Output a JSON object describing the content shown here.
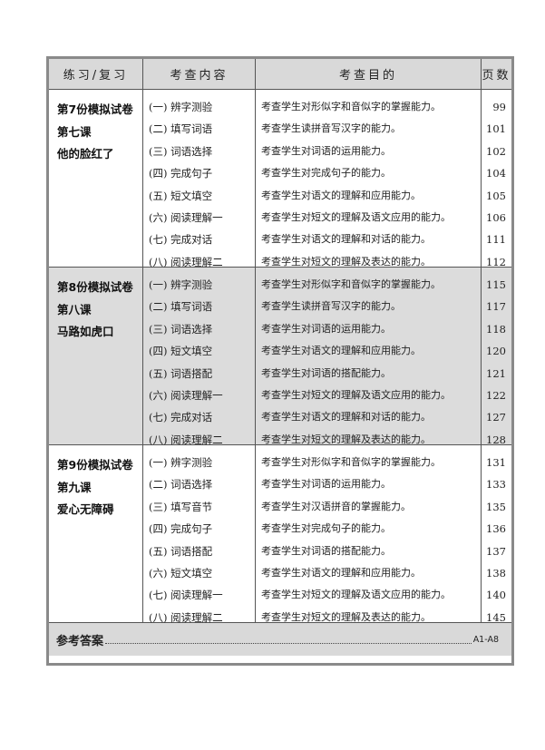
{
  "header": {
    "col1": "练习/复习",
    "col2": "考查内容",
    "col3": "考查目的",
    "col4": "页数"
  },
  "sections": [
    {
      "title": [
        "第7份模拟试卷",
        "第七课",
        "他的脸红了"
      ],
      "items": [
        {
          "content": "(一) 辨字测验",
          "purpose": "考查学生对形似字和音似字的掌握能力。",
          "page": "99"
        },
        {
          "content": "(二) 填写词语",
          "purpose": "考查学生读拼音写汉字的能力。",
          "page": "101"
        },
        {
          "content": "(三) 词语选择",
          "purpose": "考查学生对词语的运用能力。",
          "page": "102"
        },
        {
          "content": "(四) 完成句子",
          "purpose": "考查学生对完成句子的能力。",
          "page": "104"
        },
        {
          "content": "(五) 短文填空",
          "purpose": "考查学生对语文的理解和应用能力。",
          "page": "105"
        },
        {
          "content": "(六) 阅读理解一",
          "purpose": "考查学生对短文的理解及语文应用的能力。",
          "page": "106"
        },
        {
          "content": "(七) 完成对话",
          "purpose": "考查学生对语文的理解和对话的能力。",
          "page": "111"
        },
        {
          "content": "(八) 阅读理解二",
          "purpose": "考查学生对短文的理解及表达的能力。",
          "page": "112"
        }
      ]
    },
    {
      "title": [
        "第8份模拟试卷",
        "第八课",
        "马路如虎口"
      ],
      "items": [
        {
          "content": "(一) 辨字测验",
          "purpose": "考查学生对形似字和音似字的掌握能力。",
          "page": "115"
        },
        {
          "content": "(二) 填写词语",
          "purpose": "考查学生读拼音写汉字的能力。",
          "page": "117"
        },
        {
          "content": "(三) 词语选择",
          "purpose": "考查学生对词语的运用能力。",
          "page": "118"
        },
        {
          "content": "(四) 短文填空",
          "purpose": "考查学生对语文的理解和应用能力。",
          "page": "120"
        },
        {
          "content": "(五) 词语搭配",
          "purpose": "考查学生对词语的搭配能力。",
          "page": "121"
        },
        {
          "content": "(六) 阅读理解一",
          "purpose": "考查学生对短文的理解及语文应用的能力。",
          "page": "122"
        },
        {
          "content": "(七) 完成对话",
          "purpose": "考查学生对语文的理解和对话的能力。",
          "page": "127"
        },
        {
          "content": "(八) 阅读理解二",
          "purpose": "考查学生对短文的理解及表达的能力。",
          "page": "128"
        }
      ]
    },
    {
      "title": [
        "第9份模拟试卷",
        "第九课",
        "爱心无障碍"
      ],
      "items": [
        {
          "content": "(一) 辨字测验",
          "purpose": "考查学生对形似字和音似字的掌握能力。",
          "page": "131"
        },
        {
          "content": "(二) 词语选择",
          "purpose": "考查学生对词语的运用能力。",
          "page": "133"
        },
        {
          "content": "(三) 填写音节",
          "purpose": "考查学生对汉语拼音的掌握能力。",
          "page": "135"
        },
        {
          "content": "(四) 完成句子",
          "purpose": "考查学生对完成句子的能力。",
          "page": "136"
        },
        {
          "content": "(五) 词语搭配",
          "purpose": "考查学生对词语的搭配能力。",
          "page": "137"
        },
        {
          "content": "(六) 短文填空",
          "purpose": "考查学生对语文的理解和应用能力。",
          "page": "138"
        },
        {
          "content": "(七) 阅读理解一",
          "purpose": "考查学生对短文的理解及语文应用的能力。",
          "page": "140"
        },
        {
          "content": "(八) 阅读理解二",
          "purpose": "考查学生对短文的理解及表达的能力。",
          "page": "145"
        }
      ]
    }
  ],
  "footer": {
    "title": "参考答案",
    "pages": "A1-A8"
  }
}
